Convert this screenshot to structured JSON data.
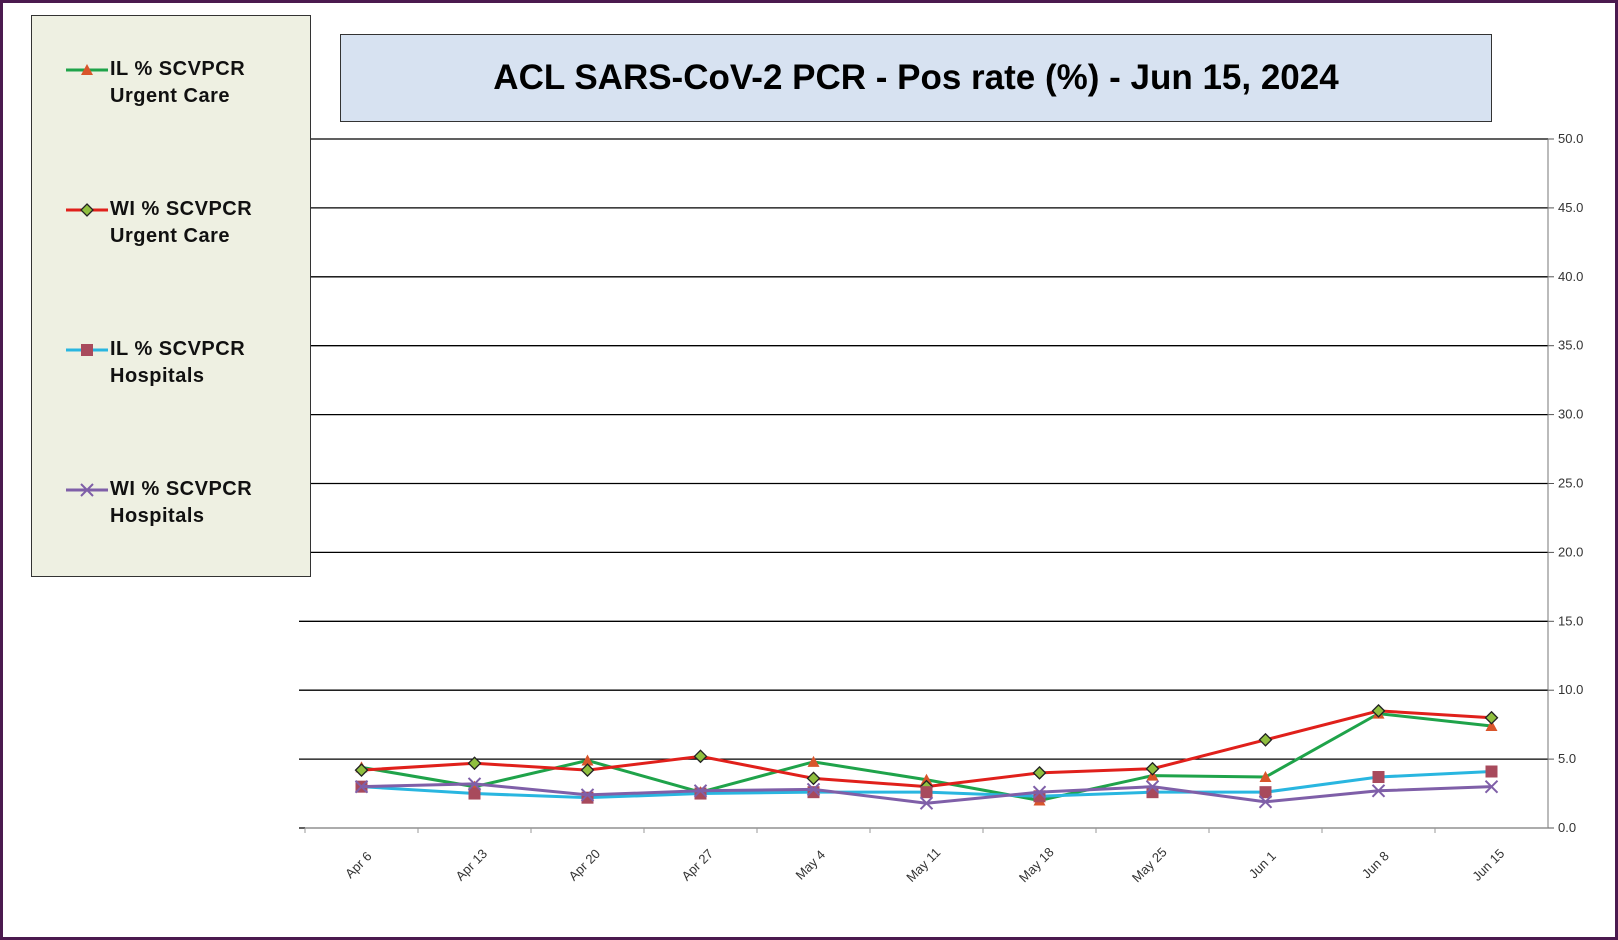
{
  "chart_data": {
    "type": "line",
    "title": "ACL SARS-CoV-2 PCR -  Pos rate (%) - Jun 15, 2024",
    "categories": [
      "Apr 6",
      "Apr 13",
      "Apr 20",
      "Apr 27",
      "May 4",
      "May 11",
      "May 18",
      "May 25",
      "Jun 1",
      "Jun 8",
      "Jun 15"
    ],
    "series": [
      {
        "name": "IL % SCVPCR Urgent Care",
        "color": "#1fa34a",
        "marker": "triangle",
        "marker_color": "#d9552b",
        "values": [
          4.4,
          3.0,
          4.9,
          2.6,
          4.8,
          3.5,
          2.0,
          3.8,
          3.7,
          8.3,
          7.4
        ]
      },
      {
        "name": "WI % SCVPCR Urgent Care",
        "color": "#e0201b",
        "marker": "diamond",
        "marker_color": "#8fbf3f",
        "values": [
          4.2,
          4.7,
          4.2,
          5.2,
          3.6,
          3.0,
          4.0,
          4.3,
          6.4,
          8.5,
          8.0
        ]
      },
      {
        "name": "IL % SCVPCR Hospitals",
        "color": "#29b6e0",
        "marker": "square",
        "marker_color": "#a84a5c",
        "values": [
          3.0,
          2.5,
          2.2,
          2.5,
          2.6,
          2.6,
          2.3,
          2.6,
          2.6,
          3.7,
          4.1
        ]
      },
      {
        "name": "WI % SCVPCR Hospitals",
        "color": "#7f5fa8",
        "marker": "x",
        "marker_color": "#7f5fa8",
        "values": [
          3.0,
          3.2,
          2.4,
          2.7,
          2.8,
          1.8,
          2.6,
          3.0,
          1.9,
          2.7,
          3.0
        ]
      }
    ],
    "ylim": [
      0,
      50
    ],
    "yticks": [
      {
        "value": 0,
        "label": "0.0"
      },
      {
        "value": 5,
        "label": "5.0"
      },
      {
        "value": 10,
        "label": "10.0"
      },
      {
        "value": 15,
        "label": "15.0"
      },
      {
        "value": 20,
        "label": "20.0"
      },
      {
        "value": 25,
        "label": "25.0"
      },
      {
        "value": 30,
        "label": "30.0"
      },
      {
        "value": 35,
        "label": "35.0"
      },
      {
        "value": 40,
        "label": "40.0"
      },
      {
        "value": 45,
        "label": "45.0"
      },
      {
        "value": 50,
        "label": "50.0"
      }
    ],
    "grid": true
  }
}
